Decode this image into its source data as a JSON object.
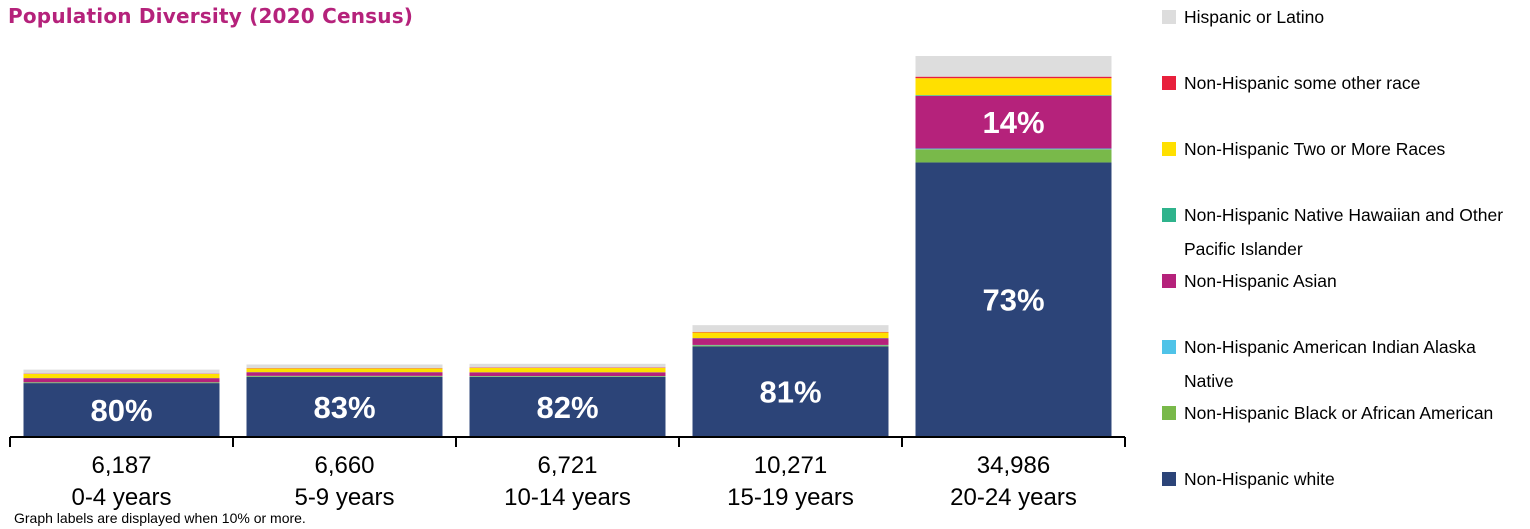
{
  "chart_data": {
    "type": "bar",
    "stacked": true,
    "title": "Population Diversity (2020 Census)",
    "footnote": "Graph labels are displayed when 10% or more.",
    "categories": [
      "0-4 years",
      "5-9 years",
      "10-14 years",
      "15-19 years",
      "20-24 years"
    ],
    "totals": [
      "6,187",
      "6,660",
      "6,721",
      "10,271",
      "34,986"
    ],
    "total_values": [
      6187,
      6660,
      6721,
      10271,
      34986
    ],
    "ylim": [
      0,
      36500
    ],
    "grid": false,
    "legend_position": "right",
    "label_threshold_percent": 10,
    "series": [
      {
        "name": "Non-Hispanic white",
        "color": "#2c4478",
        "percent": [
          80,
          83,
          82,
          81,
          73
        ],
        "labels": [
          "80%",
          "83%",
          "82%",
          "81%",
          "73%"
        ]
      },
      {
        "name": "Non-Hispanic Black or African American",
        "color": "#79b94a",
        "percent": [
          1,
          1,
          1,
          1,
          3.5
        ],
        "labels": [
          "",
          "",
          "",
          "",
          ""
        ]
      },
      {
        "name": "Non-Hispanic American Indian Alaska Native",
        "color": "#4fc3e8",
        "percent": [
          0.3,
          0.3,
          0.3,
          0.3,
          0.2
        ],
        "labels": [
          "",
          "",
          "",
          "",
          ""
        ]
      },
      {
        "name": "Non-Hispanic Asian",
        "color": "#b5227b",
        "percent": [
          6,
          5,
          5,
          6,
          14
        ],
        "labels": [
          "",
          "",
          "",
          "",
          "14%"
        ]
      },
      {
        "name": "Non-Hispanic Native Hawaiian and Other Pacific Islander",
        "color": "#2fb38c",
        "percent": [
          0.2,
          0.2,
          0.2,
          0.2,
          0.2
        ],
        "labels": [
          "",
          "",
          "",
          "",
          ""
        ]
      },
      {
        "name": "Non-Hispanic Two or More Races",
        "color": "#ffe000",
        "percent": [
          6,
          5,
          6,
          5,
          4.5
        ],
        "labels": [
          "",
          "",
          "",
          "",
          ""
        ]
      },
      {
        "name": "Non-Hispanic some other race",
        "color": "#e8203c",
        "percent": [
          0.5,
          0.5,
          0.5,
          0.5,
          0.4
        ],
        "labels": [
          "",
          "",
          "",
          "",
          ""
        ]
      },
      {
        "name": "Hispanic or Latino",
        "color": "#dddddd",
        "percent": [
          6,
          5,
          5,
          6,
          5.5
        ],
        "labels": [
          "",
          "",
          "",
          "",
          ""
        ]
      }
    ],
    "legend": [
      {
        "name": "Hispanic or Latino",
        "color": "#dddddd"
      },
      {
        "name": "Non-Hispanic some other race",
        "color": "#e8203c"
      },
      {
        "name": "Non-Hispanic Two or More Races",
        "color": "#ffe000"
      },
      {
        "name": "Non-Hispanic Native Hawaiian and Other Pacific Islander",
        "color": "#2fb38c"
      },
      {
        "name": "Non-Hispanic Asian",
        "color": "#b5227b"
      },
      {
        "name": "Non-Hispanic American Indian Alaska Native",
        "color": "#4fc3e8"
      },
      {
        "name": "Non-Hispanic Black or African American",
        "color": "#79b94a"
      },
      {
        "name": "Non-Hispanic white",
        "color": "#2c4478"
      }
    ]
  }
}
